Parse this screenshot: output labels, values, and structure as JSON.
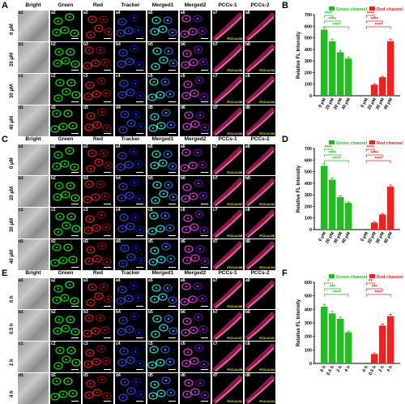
{
  "panels": {
    "a": "A",
    "b": "B",
    "c": "C",
    "d": "D",
    "e": "E",
    "f": "F"
  },
  "columns": [
    "Bright",
    "Green",
    "Red",
    "Tracker",
    "Merged1",
    "Merged2",
    "PCCs-1",
    "PCCs-2"
  ],
  "rows_conc": [
    "0 μM",
    "20 μM",
    "30 μM",
    "40 μM"
  ],
  "rows_time": [
    "0 h",
    "0.5 h",
    "2 h",
    "4 h"
  ],
  "tile_labels": {
    "a": [
      "a1",
      "a2",
      "a3",
      "a4",
      "a5",
      "a6",
      "a7",
      "a8"
    ],
    "b": [
      "b1",
      "b2",
      "b3",
      "b4",
      "b5",
      "b6",
      "b7",
      "b8"
    ],
    "c": [
      "c1",
      "c2",
      "c3",
      "c4",
      "c5",
      "c6",
      "c7",
      "c8"
    ],
    "d": [
      "d1",
      "d2",
      "d3",
      "d4",
      "d5",
      "d6",
      "d7",
      "d8"
    ]
  },
  "pcc_A": [
    [
      "PCC=0.93",
      ""
    ],
    [
      "PCC=0.96",
      "PCC=0.93"
    ],
    [
      "PCC=0.95",
      "PCC=0.94"
    ],
    [
      "PCC=0.93",
      "PCC=0.94"
    ]
  ],
  "pcc_C": [
    [
      "PCC=0.96",
      ""
    ],
    [
      "PCC=0.97",
      "PCC=0.94"
    ],
    [
      "PCC=0.95",
      "PCC=0.95"
    ],
    [
      "PCC=0.95",
      "PCC=0.94"
    ]
  ],
  "pcc_E": [
    [
      "PCC=0.96",
      ""
    ],
    [
      "PCC=0.97",
      "PCC=0.91"
    ],
    [
      "PCC=0.95",
      "PCC=0.94"
    ],
    [
      "PCC=0.91",
      "PCC=0.94"
    ]
  ],
  "scale_text": "20 μm",
  "chart_data": [
    {
      "type": "bar",
      "panel": "B",
      "ylabel": "Relative FL Intensity",
      "ylim": [
        0,
        700
      ],
      "yticks": [
        0,
        100,
        200,
        300,
        400,
        500,
        600,
        700
      ],
      "legend": [
        "Green channel",
        "Red channel"
      ],
      "series": [
        {
          "name": "Green channel",
          "categories": [
            "0 μM",
            "20 μM",
            "30 μM",
            "40 μM"
          ],
          "values": [
            570,
            470,
            375,
            320
          ],
          "color": "#22bb22"
        },
        {
          "name": "Red channel",
          "categories": [
            "0 μM",
            "20 μM",
            "30 μM",
            "40 μM"
          ],
          "values": [
            0,
            95,
            160,
            470
          ],
          "color": "#ee2222"
        }
      ],
      "sig": "****"
    },
    {
      "type": "bar",
      "panel": "D",
      "ylabel": "Relative FL Intensity",
      "ylim": [
        0,
        700
      ],
      "yticks": [
        0,
        100,
        200,
        300,
        400,
        500,
        600,
        700
      ],
      "legend": [
        "Green channel",
        "Red channel"
      ],
      "series": [
        {
          "name": "Green channel",
          "categories": [
            "0 μM",
            "20 μM",
            "30 μM",
            "40 μM"
          ],
          "values": [
            550,
            430,
            280,
            230
          ],
          "color": "#22bb22"
        },
        {
          "name": "Red channel",
          "categories": [
            "0 μM",
            "20 μM",
            "30 μM",
            "40 μM"
          ],
          "values": [
            0,
            60,
            130,
            370
          ],
          "color": "#ee2222"
        }
      ],
      "sig": "****"
    },
    {
      "type": "bar",
      "panel": "F",
      "ylabel": "Relative FL Intensity",
      "ylim": [
        0,
        600
      ],
      "yticks": [
        0,
        100,
        200,
        300,
        400,
        500,
        600
      ],
      "legend": [
        "Green channel",
        "Red channel"
      ],
      "series": [
        {
          "name": "Green channel",
          "categories": [
            "0 h",
            "0.5 h",
            "2 h",
            "4 h"
          ],
          "values": [
            420,
            370,
            330,
            230
          ],
          "color": "#22bb22"
        },
        {
          "name": "Red channel",
          "categories": [
            "0 h",
            "0.5 h",
            "2 h",
            "4 h"
          ],
          "values": [
            0,
            70,
            280,
            350
          ],
          "color": "#ee2222"
        }
      ],
      "sig_green": [
        "*",
        "***",
        "****"
      ],
      "sig_red": [
        "**",
        "***",
        "****"
      ]
    }
  ]
}
